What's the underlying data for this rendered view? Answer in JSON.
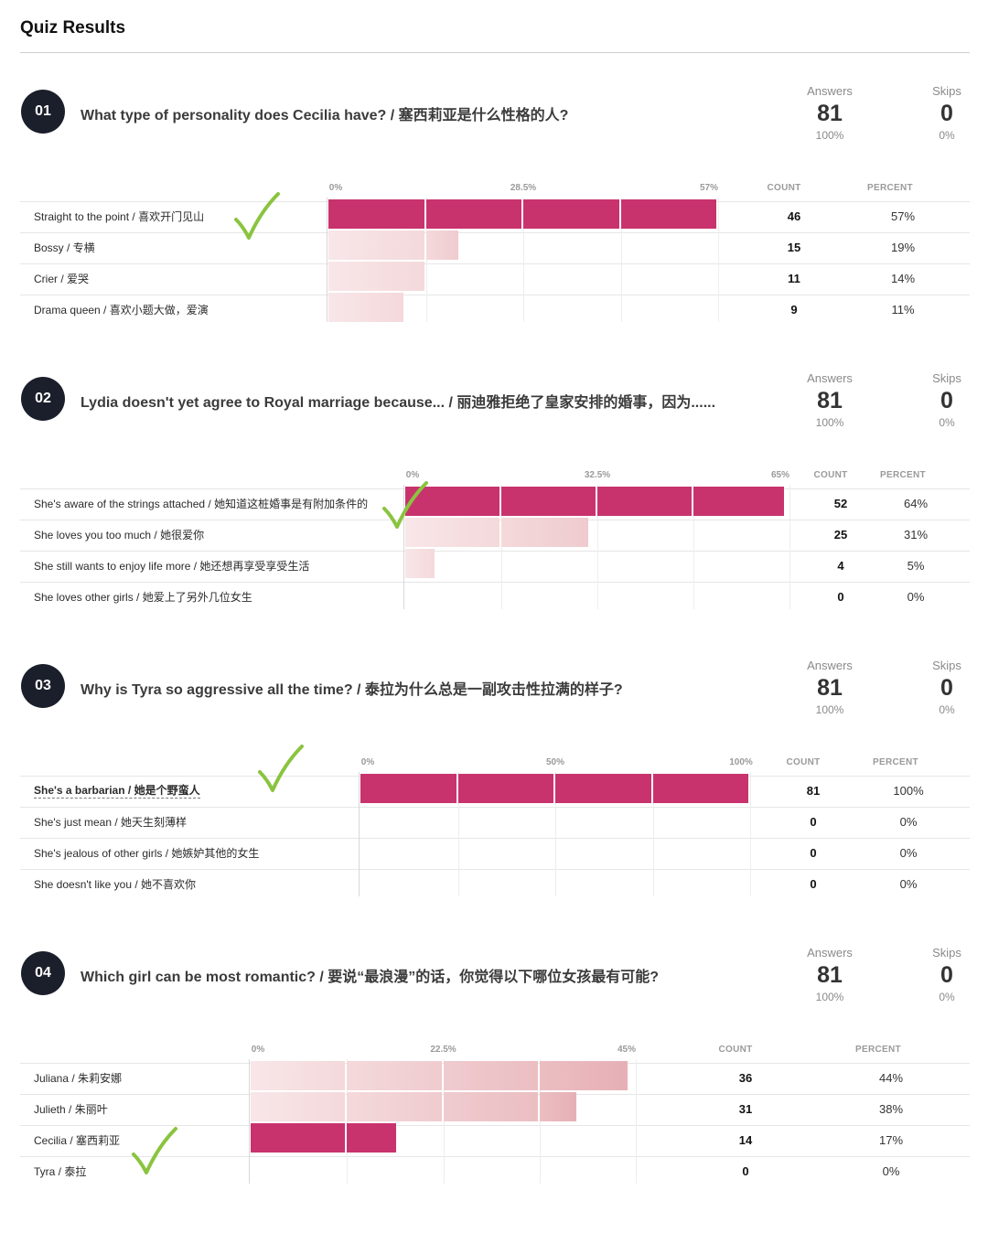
{
  "page": {
    "title": "Quiz Results"
  },
  "labels": {
    "answers": "Answers",
    "skips": "Skips",
    "count": "COUNT",
    "percent": "PERCENT"
  },
  "colors": {
    "correct": "#c8336e",
    "wrong_light": "#f8e6e8",
    "wrong_dark": "#e6b0b5",
    "check": "#8ac43f",
    "badge": "#1b1f2b"
  },
  "questions": [
    {
      "number": "01",
      "text": "What type of personality does Cecilia have? / 塞西莉亚是什么性格的人?",
      "answers": "81",
      "answers_pct": "100%",
      "skips": "0",
      "skips_pct": "0%",
      "axis_ticks": [
        "0%",
        "28.5%",
        "57%"
      ],
      "axis_max": 57,
      "options": [
        {
          "label": "Straight to the point / 喜欢开门见山",
          "count": "46",
          "percent": "57%",
          "value": 57,
          "correct": true
        },
        {
          "label": "Bossy / 专横",
          "count": "15",
          "percent": "19%",
          "value": 19,
          "correct": false
        },
        {
          "label": "Crier / 爱哭",
          "count": "11",
          "percent": "14%",
          "value": 14,
          "correct": false
        },
        {
          "label": "Drama queen / 喜欢小题大做，爱演",
          "count": "9",
          "percent": "11%",
          "value": 11,
          "correct": false
        }
      ]
    },
    {
      "number": "02",
      "text": "Lydia doesn't yet agree to Royal marriage because... / 丽迪雅拒绝了皇家安排的婚事，因为......",
      "answers": "81",
      "answers_pct": "100%",
      "skips": "0",
      "skips_pct": "0%",
      "axis_ticks": [
        "0%",
        "32.5%",
        "65%"
      ],
      "axis_max": 65,
      "options": [
        {
          "label": "She's aware of the strings attached / 她知道这桩婚事是有附加条件的",
          "count": "52",
          "percent": "64%",
          "value": 64,
          "correct": true
        },
        {
          "label": "She loves you too much / 她很爱你",
          "count": "25",
          "percent": "31%",
          "value": 31,
          "correct": false
        },
        {
          "label": "She still wants to enjoy life more / 她还想再享受享受生活",
          "count": "4",
          "percent": "5%",
          "value": 5,
          "correct": false
        },
        {
          "label": "She loves other girls / 她爱上了另外几位女生",
          "count": "0",
          "percent": "0%",
          "value": 0,
          "correct": false
        }
      ]
    },
    {
      "number": "03",
      "text": "Why is Tyra so aggressive all the time? / 泰拉为什么总是一副攻击性拉满的样子?",
      "answers": "81",
      "answers_pct": "100%",
      "skips": "0",
      "skips_pct": "0%",
      "axis_ticks": [
        "0%",
        "50%",
        "100%"
      ],
      "axis_max": 100,
      "options": [
        {
          "label": "She's a barbarian / 她是个野蛮人",
          "count": "81",
          "percent": "100%",
          "value": 100,
          "correct": true
        },
        {
          "label": "She's just mean / 她天生刻薄样",
          "count": "0",
          "percent": "0%",
          "value": 0,
          "correct": false
        },
        {
          "label": "She's jealous of other girls / 她嫉妒其他的女生",
          "count": "0",
          "percent": "0%",
          "value": 0,
          "correct": false
        },
        {
          "label": "She doesn't like you / 她不喜欢你",
          "count": "0",
          "percent": "0%",
          "value": 0,
          "correct": false
        }
      ]
    },
    {
      "number": "04",
      "text": "Which girl can be most romantic? / 要说“最浪漫”的话，你觉得以下哪位女孩最有可能?",
      "answers": "81",
      "answers_pct": "100%",
      "skips": "0",
      "skips_pct": "0%",
      "axis_ticks": [
        "0%",
        "22.5%",
        "45%"
      ],
      "axis_max": 45,
      "options": [
        {
          "label": "Juliana / 朱莉安娜",
          "count": "36",
          "percent": "44%",
          "value": 44,
          "correct": false
        },
        {
          "label": "Julieth / 朱丽叶",
          "count": "31",
          "percent": "38%",
          "value": 38,
          "correct": false
        },
        {
          "label": "Cecilia / 塞西莉亚",
          "count": "14",
          "percent": "17%",
          "value": 17,
          "correct": true
        },
        {
          "label": "Tyra / 泰拉",
          "count": "0",
          "percent": "0%",
          "value": 0,
          "correct": false
        }
      ]
    }
  ]
}
